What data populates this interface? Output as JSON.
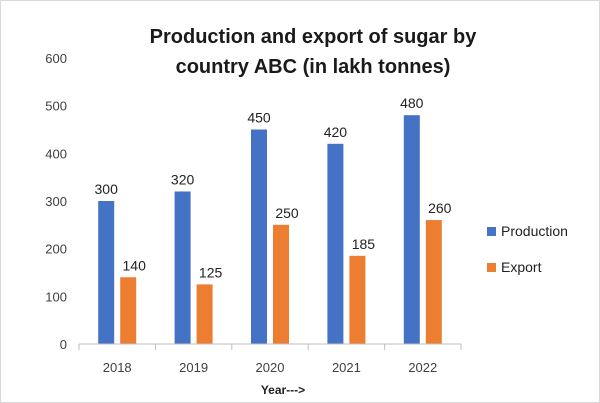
{
  "chart_data": {
    "type": "bar",
    "title_lines": [
      "Production and export of sugar by",
      "country ABC (in lakh tonnes)"
    ],
    "xlabel": "Year--->",
    "ylabel": "",
    "categories": [
      "2018",
      "2019",
      "2020",
      "2021",
      "2022"
    ],
    "series": [
      {
        "name": "Production",
        "color": "#4472C4",
        "values": [
          300,
          320,
          450,
          420,
          480
        ]
      },
      {
        "name": "Export",
        "color": "#ED7D31",
        "values": [
          140,
          125,
          250,
          185,
          260
        ]
      }
    ],
    "ylim": [
      0,
      600
    ],
    "yticks": [
      0,
      100,
      200,
      300,
      400,
      500,
      600
    ],
    "grid": false,
    "legend": "right",
    "data_labels": true
  }
}
